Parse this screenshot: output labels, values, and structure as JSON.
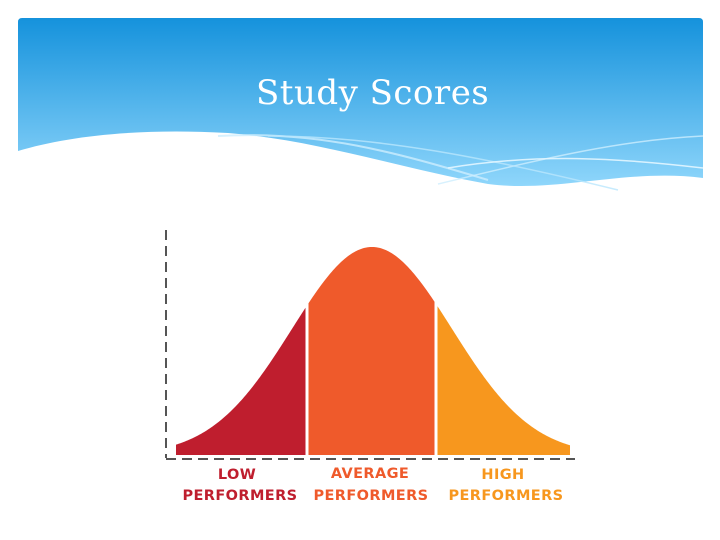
{
  "slide": {
    "title": "Study Scores"
  },
  "colors": {
    "header_top": "#1592dc",
    "header_bottom": "#8fd6fb",
    "low": "#bf1e2e",
    "average": "#ef5a2b",
    "high": "#f7971e",
    "axis": "#555555"
  },
  "chart_data": {
    "type": "area",
    "distribution": "normal (bell curve)",
    "segments": [
      {
        "label_line1": "LOW",
        "label_line2": "PERFORMERS",
        "color": "#bf1e2e"
      },
      {
        "label_line1": "AVERAGE",
        "label_line2": "PERFORMERS",
        "color": "#ef5a2b"
      },
      {
        "label_line1": "HIGH",
        "label_line2": "PERFORMERS",
        "color": "#f7971e"
      }
    ],
    "axes": "dashed",
    "grid": false,
    "legend": "none"
  }
}
